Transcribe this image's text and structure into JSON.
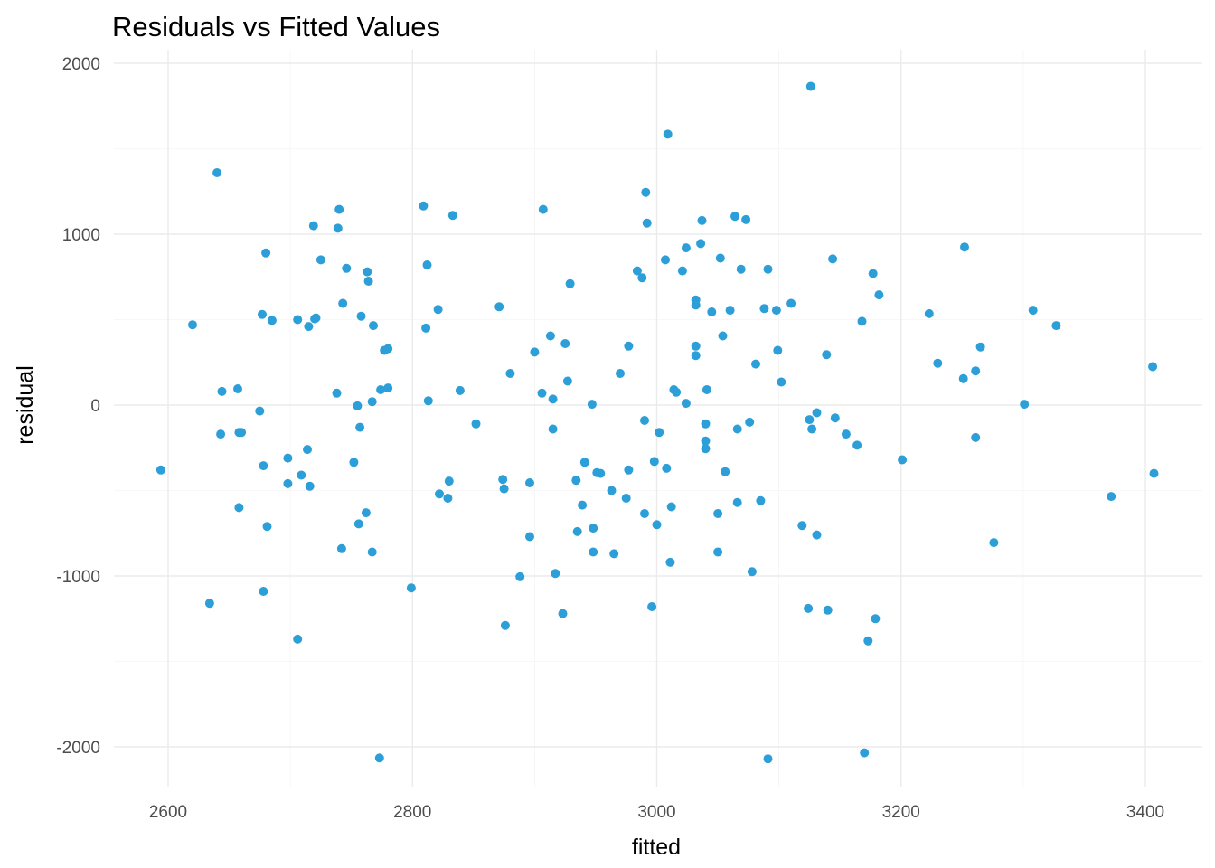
{
  "chart_data": {
    "type": "scatter",
    "title": "Residuals vs Fitted Values",
    "xlabel": "fitted",
    "ylabel": "residual",
    "xlim": [
      2560,
      3420
    ],
    "ylim": [
      -2250,
      2050
    ],
    "x_ticks": [
      2600,
      2800,
      3000,
      3200,
      3400
    ],
    "y_ticks": [
      -2000,
      -1000,
      0,
      1000,
      2000
    ],
    "x_tick_labels": [
      "2600",
      "2800",
      "3000",
      "3200",
      "3400"
    ],
    "y_tick_labels": [
      "-2000",
      "-1000",
      "0",
      "1000",
      "2000"
    ],
    "grid": true,
    "legend": "none",
    "point_color": "#2c9fd9",
    "points": [
      {
        "x": 2594,
        "y": -380
      },
      {
        "x": 2620,
        "y": 470
      },
      {
        "x": 2634,
        "y": -1160
      },
      {
        "x": 2640,
        "y": 1360
      },
      {
        "x": 2643,
        "y": -170
      },
      {
        "x": 2644,
        "y": 80
      },
      {
        "x": 2657,
        "y": 95
      },
      {
        "x": 2658,
        "y": -600
      },
      {
        "x": 2658,
        "y": -160
      },
      {
        "x": 2660,
        "y": -160
      },
      {
        "x": 2675,
        "y": -35
      },
      {
        "x": 2677,
        "y": 530
      },
      {
        "x": 2678,
        "y": -355
      },
      {
        "x": 2678,
        "y": -1090
      },
      {
        "x": 2680,
        "y": 890
      },
      {
        "x": 2681,
        "y": -710
      },
      {
        "x": 2685,
        "y": 495
      },
      {
        "x": 2698,
        "y": -310
      },
      {
        "x": 2698,
        "y": -460
      },
      {
        "x": 2706,
        "y": 500
      },
      {
        "x": 2706,
        "y": -1370
      },
      {
        "x": 2709,
        "y": -410
      },
      {
        "x": 2714,
        "y": -260
      },
      {
        "x": 2715,
        "y": 460
      },
      {
        "x": 2716,
        "y": -475
      },
      {
        "x": 2719,
        "y": 1050
      },
      {
        "x": 2720,
        "y": 505
      },
      {
        "x": 2721,
        "y": 510
      },
      {
        "x": 2725,
        "y": 850
      },
      {
        "x": 2738,
        "y": 70
      },
      {
        "x": 2739,
        "y": 1035
      },
      {
        "x": 2740,
        "y": 1145
      },
      {
        "x": 2742,
        "y": -840
      },
      {
        "x": 2743,
        "y": 595
      },
      {
        "x": 2746,
        "y": 800
      },
      {
        "x": 2752,
        "y": -335
      },
      {
        "x": 2755,
        "y": -5
      },
      {
        "x": 2756,
        "y": -695
      },
      {
        "x": 2757,
        "y": -130
      },
      {
        "x": 2758,
        "y": 520
      },
      {
        "x": 2762,
        "y": -630
      },
      {
        "x": 2763,
        "y": 780
      },
      {
        "x": 2764,
        "y": 725
      },
      {
        "x": 2767,
        "y": -860
      },
      {
        "x": 2767,
        "y": 20
      },
      {
        "x": 2768,
        "y": 465
      },
      {
        "x": 2773,
        "y": -2065
      },
      {
        "x": 2774,
        "y": 90
      },
      {
        "x": 2777,
        "y": 320
      },
      {
        "x": 2780,
        "y": 330
      },
      {
        "x": 2780,
        "y": 100
      },
      {
        "x": 2799,
        "y": -1070
      },
      {
        "x": 2809,
        "y": 1165
      },
      {
        "x": 2811,
        "y": 450
      },
      {
        "x": 2812,
        "y": 820
      },
      {
        "x": 2813,
        "y": 25
      },
      {
        "x": 2821,
        "y": 560
      },
      {
        "x": 2822,
        "y": -520
      },
      {
        "x": 2829,
        "y": -545
      },
      {
        "x": 2830,
        "y": -445
      },
      {
        "x": 2833,
        "y": 1110
      },
      {
        "x": 2839,
        "y": 85
      },
      {
        "x": 2852,
        "y": -110
      },
      {
        "x": 2871,
        "y": 575
      },
      {
        "x": 2874,
        "y": -435
      },
      {
        "x": 2875,
        "y": -490
      },
      {
        "x": 2876,
        "y": -1290
      },
      {
        "x": 2880,
        "y": 185
      },
      {
        "x": 2888,
        "y": -1005
      },
      {
        "x": 2896,
        "y": -455
      },
      {
        "x": 2896,
        "y": -770
      },
      {
        "x": 2900,
        "y": 310
      },
      {
        "x": 2906,
        "y": 70
      },
      {
        "x": 2907,
        "y": 1145
      },
      {
        "x": 2913,
        "y": 405
      },
      {
        "x": 2915,
        "y": 35
      },
      {
        "x": 2915,
        "y": -140
      },
      {
        "x": 2917,
        "y": -985
      },
      {
        "x": 2923,
        "y": -1220
      },
      {
        "x": 2925,
        "y": 360
      },
      {
        "x": 2927,
        "y": 140
      },
      {
        "x": 2929,
        "y": 710
      },
      {
        "x": 2934,
        "y": -440
      },
      {
        "x": 2935,
        "y": -740
      },
      {
        "x": 2939,
        "y": -585
      },
      {
        "x": 2941,
        "y": -335
      },
      {
        "x": 2947,
        "y": 5
      },
      {
        "x": 2948,
        "y": -720
      },
      {
        "x": 2948,
        "y": -860
      },
      {
        "x": 2951,
        "y": -395
      },
      {
        "x": 2954,
        "y": -400
      },
      {
        "x": 2963,
        "y": -500
      },
      {
        "x": 2965,
        "y": -870
      },
      {
        "x": 2970,
        "y": 185
      },
      {
        "x": 2975,
        "y": -545
      },
      {
        "x": 2977,
        "y": 345
      },
      {
        "x": 2977,
        "y": -380
      },
      {
        "x": 2984,
        "y": 785
      },
      {
        "x": 2988,
        "y": 745
      },
      {
        "x": 2990,
        "y": -90
      },
      {
        "x": 2990,
        "y": -635
      },
      {
        "x": 2991,
        "y": 1245
      },
      {
        "x": 2992,
        "y": 1065
      },
      {
        "x": 2996,
        "y": -1180
      },
      {
        "x": 2998,
        "y": -330
      },
      {
        "x": 3000,
        "y": -700
      },
      {
        "x": 3002,
        "y": -160
      },
      {
        "x": 3007,
        "y": 850
      },
      {
        "x": 3008,
        "y": -370
      },
      {
        "x": 3009,
        "y": 1585
      },
      {
        "x": 3011,
        "y": -920
      },
      {
        "x": 3012,
        "y": -595
      },
      {
        "x": 3014,
        "y": 90
      },
      {
        "x": 3016,
        "y": 75
      },
      {
        "x": 3021,
        "y": 785
      },
      {
        "x": 3024,
        "y": 10
      },
      {
        "x": 3024,
        "y": 920
      },
      {
        "x": 3032,
        "y": 615
      },
      {
        "x": 3032,
        "y": 585
      },
      {
        "x": 3032,
        "y": 345
      },
      {
        "x": 3032,
        "y": 290
      },
      {
        "x": 3036,
        "y": 945
      },
      {
        "x": 3037,
        "y": 1080
      },
      {
        "x": 3040,
        "y": -110
      },
      {
        "x": 3040,
        "y": -210
      },
      {
        "x": 3040,
        "y": -255
      },
      {
        "x": 3041,
        "y": 90
      },
      {
        "x": 3045,
        "y": 545
      },
      {
        "x": 3050,
        "y": -860
      },
      {
        "x": 3050,
        "y": -635
      },
      {
        "x": 3052,
        "y": 860
      },
      {
        "x": 3054,
        "y": 405
      },
      {
        "x": 3056,
        "y": -390
      },
      {
        "x": 3060,
        "y": 555
      },
      {
        "x": 3064,
        "y": 1105
      },
      {
        "x": 3066,
        "y": -570
      },
      {
        "x": 3066,
        "y": -140
      },
      {
        "x": 3069,
        "y": 795
      },
      {
        "x": 3073,
        "y": 1085
      },
      {
        "x": 3076,
        "y": -100
      },
      {
        "x": 3078,
        "y": -975
      },
      {
        "x": 3081,
        "y": 240
      },
      {
        "x": 3085,
        "y": -560
      },
      {
        "x": 3088,
        "y": 565
      },
      {
        "x": 3091,
        "y": -2070
      },
      {
        "x": 3091,
        "y": 795
      },
      {
        "x": 3098,
        "y": 555
      },
      {
        "x": 3099,
        "y": 320
      },
      {
        "x": 3102,
        "y": 135
      },
      {
        "x": 3110,
        "y": 595
      },
      {
        "x": 3119,
        "y": -705
      },
      {
        "x": 3124,
        "y": -1190
      },
      {
        "x": 3125,
        "y": -85
      },
      {
        "x": 3126,
        "y": 1865
      },
      {
        "x": 3127,
        "y": -140
      },
      {
        "x": 3131,
        "y": -45
      },
      {
        "x": 3131,
        "y": -760
      },
      {
        "x": 3139,
        "y": 295
      },
      {
        "x": 3140,
        "y": -1200
      },
      {
        "x": 3144,
        "y": 855
      },
      {
        "x": 3146,
        "y": -75
      },
      {
        "x": 3155,
        "y": -170
      },
      {
        "x": 3164,
        "y": -235
      },
      {
        "x": 3168,
        "y": 490
      },
      {
        "x": 3170,
        "y": -2035
      },
      {
        "x": 3173,
        "y": -1380
      },
      {
        "x": 3177,
        "y": 770
      },
      {
        "x": 3179,
        "y": -1250
      },
      {
        "x": 3182,
        "y": 645
      },
      {
        "x": 3201,
        "y": -320
      },
      {
        "x": 3223,
        "y": 535
      },
      {
        "x": 3230,
        "y": 245
      },
      {
        "x": 3251,
        "y": 155
      },
      {
        "x": 3252,
        "y": 925
      },
      {
        "x": 3261,
        "y": 200
      },
      {
        "x": 3261,
        "y": -190
      },
      {
        "x": 3265,
        "y": 340
      },
      {
        "x": 3276,
        "y": -805
      },
      {
        "x": 3301,
        "y": 5
      },
      {
        "x": 3308,
        "y": 555
      },
      {
        "x": 3327,
        "y": 465
      },
      {
        "x": 3372,
        "y": -535
      },
      {
        "x": 3406,
        "y": 225
      },
      {
        "x": 3407,
        "y": -400
      }
    ]
  }
}
